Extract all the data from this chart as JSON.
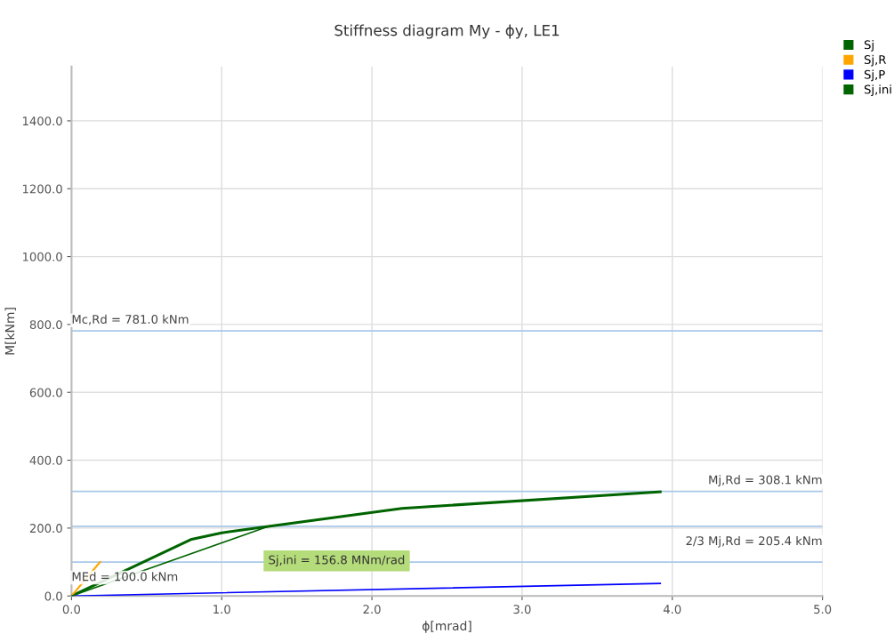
{
  "chart_data": {
    "type": "line",
    "title": "Stiffness diagram My - ϕy, LE1",
    "xlabel": "ϕ[mrad]",
    "ylabel": "M[kNm]",
    "xlim": [
      0,
      5
    ],
    "ylim": [
      0,
      1560
    ],
    "xticks": [
      {
        "value": 0,
        "label": "0.0"
      },
      {
        "value": 1,
        "label": "1.0"
      },
      {
        "value": 2,
        "label": "2.0"
      },
      {
        "value": 3,
        "label": "3.0"
      },
      {
        "value": 4,
        "label": "4.0"
      },
      {
        "value": 5,
        "label": "5.0"
      }
    ],
    "yticks": [
      {
        "value": 0,
        "label": "0.0"
      },
      {
        "value": 200,
        "label": "200.0"
      },
      {
        "value": 400,
        "label": "400.0"
      },
      {
        "value": 600,
        "label": "600.0"
      },
      {
        "value": 800,
        "label": "800.0"
      },
      {
        "value": 1000,
        "label": "1000.0"
      },
      {
        "value": 1200,
        "label": "1200.0"
      },
      {
        "value": 1400,
        "label": "1400.0"
      }
    ],
    "grid": true,
    "legend": "top right",
    "marker": "none",
    "series": [
      {
        "name": "Sj",
        "color": "#006400",
        "x": [
          0,
          0.8,
          1.0,
          1.31,
          2.2,
          3.92
        ],
        "values": [
          0,
          167,
          186,
          205,
          258,
          307
        ]
      },
      {
        "name": "Sj,R",
        "color": "#ffa500",
        "x": [
          0,
          0.19
        ],
        "values": [
          0,
          100
        ]
      },
      {
        "name": "Sj,P",
        "color": "#0000ff",
        "x": [
          0,
          3.92
        ],
        "values": [
          0,
          37
        ]
      },
      {
        "name": "Sj,ini",
        "color": "#006400",
        "x": [
          0,
          1.31
        ],
        "values": [
          0,
          205
        ]
      }
    ],
    "ref_lines": [
      {
        "axis": "y",
        "value": 781.0,
        "label": "Mc,Rd = 781.0 kNm",
        "color": "#a8c8e8"
      },
      {
        "axis": "y",
        "value": 308.1,
        "label": "Mj,Rd = 308.1 kNm",
        "color": "#a8c8e8"
      },
      {
        "axis": "y",
        "value": 205.4,
        "label": "2/3 Mj,Rd = 205.4 kNm",
        "color": "#a8c8e8"
      },
      {
        "axis": "y",
        "value": 100.0,
        "label": "MEd = 100.0 kNm",
        "color": "#a8c8e8"
      }
    ],
    "annotations": [
      {
        "text": "Sj,ini = 156.8 MNm/rad",
        "x": 1.31,
        "y": 205.4
      }
    ]
  }
}
